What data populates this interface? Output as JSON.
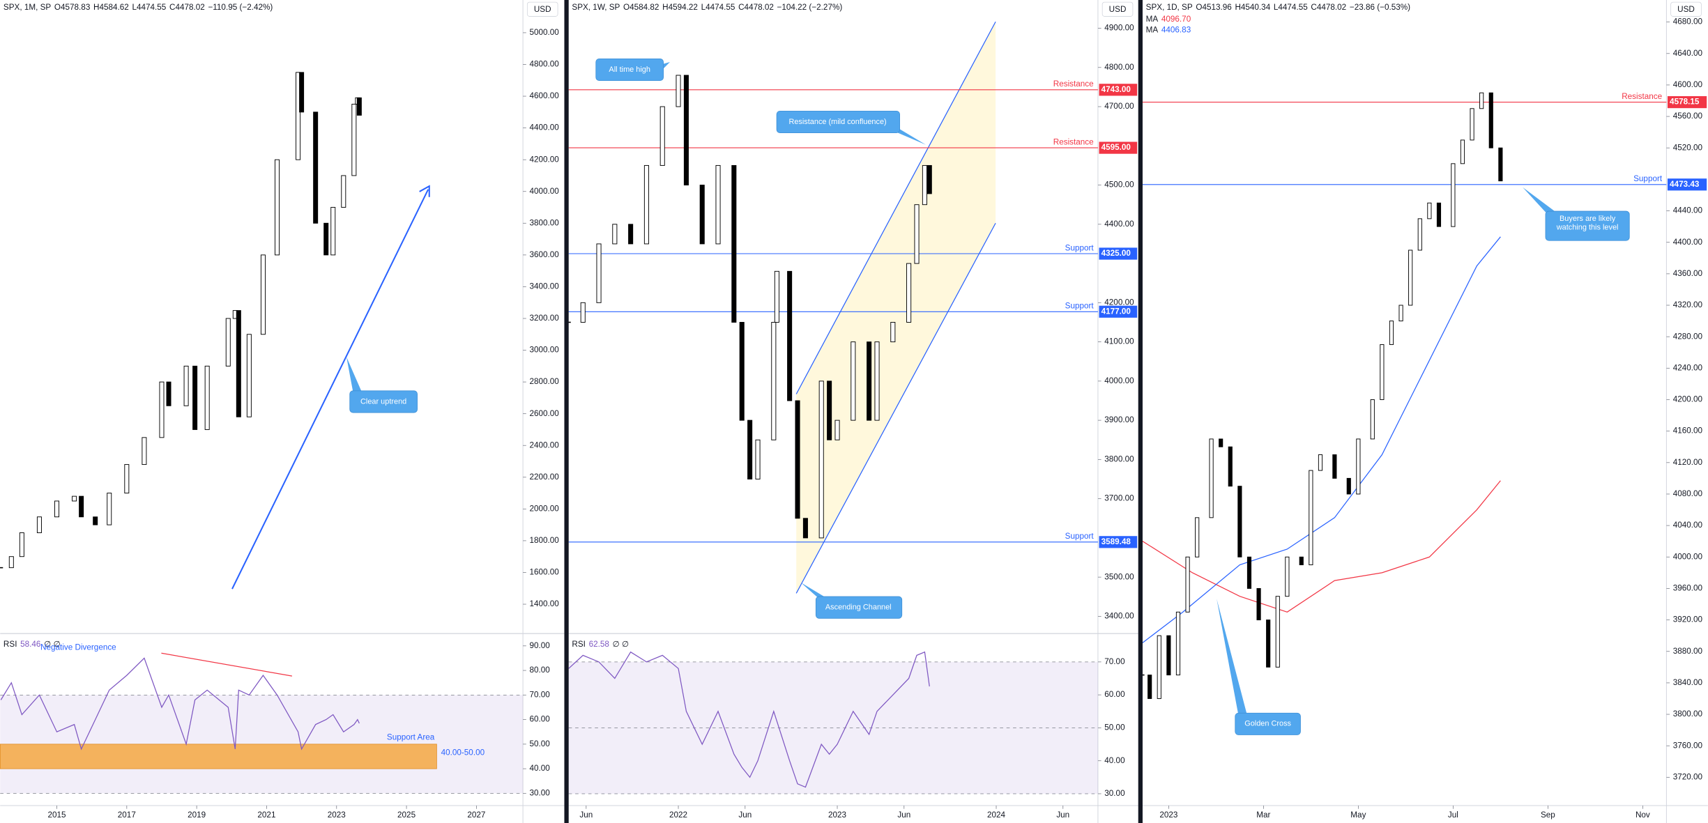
{
  "chart_data": [
    {
      "type": "candlestick",
      "header": {
        "symbol": "SPX, 1M, SP",
        "open": "O4578.83",
        "high": "H4584.62",
        "low": "L4474.55",
        "close": "C4478.02",
        "change": "−110.95 (−2.42%)"
      },
      "currency": "USD",
      "x": [
        2013.4,
        2013.7,
        2014.0,
        2014.5,
        2015.0,
        2015.5,
        2015.7,
        2016.1,
        2016.5,
        2017.0,
        2017.5,
        2018.0,
        2018.2,
        2018.7,
        2018.95,
        2019.3,
        2019.9,
        2020.1,
        2020.2,
        2020.5,
        2020.9,
        2021.3,
        2021.9,
        2022.0,
        2022.4,
        2022.7,
        2022.9,
        2023.2,
        2023.5,
        2023.6,
        2023.65
      ],
      "close": [
        1630,
        1700,
        1850,
        1950,
        2050,
        2080,
        1950,
        1900,
        2100,
        2280,
        2450,
        2800,
        2650,
        2900,
        2500,
        2900,
        3200,
        3250,
        2580,
        3100,
        3600,
        4200,
        4750,
        4500,
        3800,
        3600,
        3900,
        4100,
        4550,
        4590,
        4480
      ],
      "xlim": [
        2013.38,
        2028.33
      ],
      "xticks": [
        2015,
        2017,
        2019,
        2021,
        2023,
        2025,
        2027
      ],
      "ylim": [
        1215,
        5206
      ],
      "yticks": [
        {
          "value": 1400,
          "label": "1400.00"
        },
        {
          "value": 1600,
          "label": "1600.00"
        },
        {
          "value": 1800,
          "label": "1800.00"
        },
        {
          "value": 2000,
          "label": "2000.00"
        },
        {
          "value": 2200,
          "label": "2200.00"
        },
        {
          "value": 2400,
          "label": "2400.00"
        },
        {
          "value": 2600,
          "label": "2600.00"
        },
        {
          "value": 2800,
          "label": "2800.00"
        },
        {
          "value": 3000,
          "label": "3000.00"
        },
        {
          "value": 3200,
          "label": "3200.00"
        },
        {
          "value": 3400,
          "label": "3400.00"
        },
        {
          "value": 3600,
          "label": "3600.00"
        },
        {
          "value": 3800,
          "label": "3800.00"
        },
        {
          "value": 4000,
          "label": "4000.00"
        },
        {
          "value": 4200,
          "label": "4200.00"
        },
        {
          "value": 4400,
          "label": "4400.00"
        },
        {
          "value": 4600,
          "label": "4600.00"
        },
        {
          "value": 4800,
          "label": "4800.00"
        },
        {
          "value": 5000,
          "label": "5000.00"
        }
      ],
      "rsi": {
        "label": "RSI",
        "value": 58.46,
        "flags": "∅ ∅",
        "color": "#7e57c2",
        "values": [
          68,
          75,
          62,
          70,
          55,
          58,
          48,
          60,
          72,
          78,
          85,
          65,
          70,
          50,
          68,
          72,
          65,
          48,
          72,
          70,
          78,
          70,
          55,
          48,
          58,
          60,
          62,
          55,
          58,
          60,
          58.46
        ],
        "ylim": [
          25,
          95
        ],
        "levels": [
          30,
          70
        ],
        "yticks": [
          {
            "value": 30,
            "label": "30.00"
          },
          {
            "value": 40,
            "label": "40.00"
          },
          {
            "value": 50,
            "label": "50.00"
          },
          {
            "value": 60,
            "label": "60.00"
          },
          {
            "value": 70,
            "label": "70.00"
          },
          {
            "value": 80,
            "label": "80.00"
          },
          {
            "value": 90,
            "label": "90.00"
          }
        ],
        "zone": {
          "name": "Support Area",
          "label": "40.00-50.00",
          "low": 40,
          "high": 50,
          "color": "#f5a742"
        }
      },
      "annotations": [
        "Clear uptrend",
        "Negative Divergence"
      ]
    },
    {
      "type": "candlestick",
      "header": {
        "symbol": "SPX, 1W, SP",
        "open": "O4584.82",
        "high": "H4594.22",
        "low": "L4474.55",
        "close": "C4478.02",
        "change": "−104.22 (−2.27%)"
      },
      "currency": "USD",
      "x": [
        2021.31,
        2021.4,
        2021.5,
        2021.6,
        2021.7,
        2021.8,
        2021.9,
        2022.0,
        2022.05,
        2022.15,
        2022.25,
        2022.35,
        2022.4,
        2022.45,
        2022.5,
        2022.6,
        2022.62,
        2022.7,
        2022.75,
        2022.8,
        2022.9,
        2022.95,
        2023.0,
        2023.1,
        2023.2,
        2023.25,
        2023.35,
        2023.45,
        2023.5,
        2023.55,
        2023.58
      ],
      "close": [
        4150,
        4200,
        4350,
        4400,
        4350,
        4550,
        4700,
        4780,
        4500,
        4350,
        4550,
        4150,
        3900,
        3750,
        3850,
        4150,
        4280,
        3950,
        3650,
        3600,
        4000,
        3850,
        3900,
        4100,
        3900,
        4100,
        4150,
        4300,
        4450,
        4550,
        4478
      ],
      "xlim": [
        2021.31,
        2024.64
      ],
      "xticks": [
        {
          "value": 2021.42,
          "label": "Jun"
        },
        2022,
        {
          "value": 2022.42,
          "label": "Jun"
        },
        2023,
        {
          "value": 2023.42,
          "label": "Jun"
        },
        2024,
        {
          "value": 2024.42,
          "label": "Jun"
        }
      ],
      "ylim": [
        3356,
        4972
      ],
      "yticks": [
        {
          "value": 3400,
          "label": "3400.00"
        },
        {
          "value": 3500,
          "label": "3500.00"
        },
        {
          "value": 3700,
          "label": "3700.00"
        },
        {
          "value": 3800,
          "label": "3800.00"
        },
        {
          "value": 3900,
          "label": "3900.00"
        },
        {
          "value": 4000,
          "label": "4000.00"
        },
        {
          "value": 4100,
          "label": "4100.00"
        },
        {
          "value": 4200,
          "label": "4200.00"
        },
        {
          "value": 4400,
          "label": "4400.00"
        },
        {
          "value": 4500,
          "label": "4500.00"
        },
        {
          "value": 4700,
          "label": "4700.00"
        },
        {
          "value": 4800,
          "label": "4800.00"
        },
        {
          "value": 4900,
          "label": "4900.00"
        }
      ],
      "levels": [
        {
          "name": "Resistance",
          "value": {
            "value": 4743,
            "label": "4743.00"
          },
          "color": "#f23645"
        },
        {
          "name": "Resistance",
          "value": {
            "value": 4595,
            "label": "4595.00"
          },
          "color": "#f23645"
        },
        {
          "name": "Support",
          "value": {
            "value": 4325,
            "label": "4325.00"
          },
          "color": "#2962ff"
        },
        {
          "name": "Support",
          "value": {
            "value": 4177,
            "label": "4177.00"
          },
          "color": "#2962ff"
        },
        {
          "name": "Support",
          "value": 3589.48,
          "color": "#2962ff"
        }
      ],
      "rsi": {
        "label": "RSI",
        "value": 62.58,
        "flags": "∅ ∅",
        "color": "#7e57c2",
        "values": [
          68,
          72,
          70,
          65,
          73,
          70,
          72,
          68,
          55,
          45,
          55,
          42,
          38,
          35,
          40,
          55,
          52,
          40,
          33,
          32,
          45,
          42,
          45,
          55,
          48,
          55,
          60,
          65,
          72,
          73,
          62.58
        ],
        "ylim": [
          26.4,
          78.6
        ],
        "levels": [
          30,
          50,
          70
        ],
        "yticks": [
          {
            "value": 30,
            "label": "30.00"
          },
          {
            "value": 40,
            "label": "40.00"
          },
          {
            "value": 50,
            "label": "50.00"
          },
          {
            "value": 60,
            "label": "60.00"
          },
          {
            "value": 70,
            "label": "70.00"
          }
        ]
      },
      "annotations": [
        "All time high",
        "Resistance (mild confluence)",
        "Ascending Channel"
      ]
    },
    {
      "type": "candlestick",
      "header": {
        "symbol": "SPX, 1D, SP",
        "open": "O4513.96",
        "high": "H4540.34",
        "low": "L4474.55",
        "close": "C4478.02",
        "change": "−23.86 (−0.53%)"
      },
      "currency": "USD",
      "x": [
        -0.55,
        -0.4,
        -0.2,
        0,
        0.2,
        0.4,
        0.6,
        0.9,
        1.1,
        1.3,
        1.5,
        1.7,
        1.9,
        2.1,
        2.3,
        2.5,
        2.8,
        3.0,
        3.2,
        3.5,
        3.8,
        4.0,
        4.3,
        4.5,
        4.7,
        4.9,
        5.1,
        5.3,
        5.5,
        5.7,
        6.0,
        6.2,
        6.4,
        6.6,
        6.8,
        7.0
      ],
      "close": [
        3850,
        3820,
        3900,
        3850,
        3930,
        4000,
        4050,
        4150,
        4140,
        4090,
        4000,
        3960,
        3920,
        3860,
        3950,
        4000,
        3990,
        4110,
        4130,
        4100,
        4080,
        4150,
        4200,
        4270,
        4300,
        4320,
        4390,
        4430,
        4450,
        4420,
        4500,
        4530,
        4570,
        4590,
        4520,
        4478
      ],
      "xlim": [
        -0.55,
        10.5
      ],
      "xticks": [
        {
          "value": 0,
          "label": "2023"
        },
        {
          "value": 2,
          "label": "Mar"
        },
        {
          "value": 4,
          "label": "May"
        },
        {
          "value": 6,
          "label": "Jul"
        },
        {
          "value": 8,
          "label": "Sep"
        },
        {
          "value": 10,
          "label": "Nov"
        }
      ],
      "ylim": [
        3684,
        4708
      ],
      "yticks": [
        {
          "value": 3720,
          "label": "3720.00"
        },
        {
          "value": 3760,
          "label": "3760.00"
        },
        {
          "value": 3800,
          "label": "3800.00"
        },
        {
          "value": 3840,
          "label": "3840.00"
        },
        {
          "value": 3880,
          "label": "3880.00"
        },
        {
          "value": 3920,
          "label": "3920.00"
        },
        {
          "value": 3960,
          "label": "3960.00"
        },
        {
          "value": 4000,
          "label": "4000.00"
        },
        {
          "value": 4040,
          "label": "4040.00"
        },
        {
          "value": 4080,
          "label": "4080.00"
        },
        {
          "value": 4120,
          "label": "4120.00"
        },
        {
          "value": 4160,
          "label": "4160.00"
        },
        {
          "value": 4200,
          "label": "4200.00"
        },
        {
          "value": 4240,
          "label": "4240.00"
        },
        {
          "value": 4280,
          "label": "4280.00"
        },
        {
          "value": 4320,
          "label": "4320.00"
        },
        {
          "value": 4360,
          "label": "4360.00"
        },
        {
          "value": 4400,
          "label": "4400.00"
        },
        {
          "value": 4440,
          "label": "4440.00"
        },
        {
          "value": 4520,
          "label": "4520.00"
        },
        {
          "value": 4560,
          "label": "4560.00"
        },
        {
          "value": 4600,
          "label": "4600.00"
        },
        {
          "value": 4640,
          "label": "4640.00"
        },
        {
          "value": 4680,
          "label": "4680.00"
        }
      ],
      "levels": [
        {
          "name": "Resistance",
          "value": {
            "value": 4578.15,
            "label": "4578.15"
          },
          "color": "#f23645"
        },
        {
          "name": "Support",
          "value": 4473.43,
          "color": "#2962ff"
        }
      ],
      "moving_averages": [
        {
          "name": "MA",
          "value": {
            "value": 4096.7,
            "label": "4096.70"
          },
          "color": "#f23645",
          "x": [
            -0.55,
            0.5,
            1.5,
            2.5,
            3.5,
            4.5,
            5.5,
            6.5,
            7.0
          ],
          "values": [
            4020,
            3980,
            3950,
            3930,
            3970,
            3980,
            4000,
            4060,
            4097
          ]
        },
        {
          "name": "MA",
          "value": 4406.83,
          "color": "#2962ff",
          "x": [
            -0.55,
            0.3,
            1.5,
            2.5,
            3.5,
            4.5,
            5.5,
            6.5,
            7.0
          ],
          "values": [
            3891,
            3930,
            3990,
            4010,
            4050,
            4130,
            4250,
            4370,
            4407
          ]
        }
      ],
      "annotations": [
        "Buyers are likely watching this level",
        "Golden Cross"
      ]
    }
  ]
}
